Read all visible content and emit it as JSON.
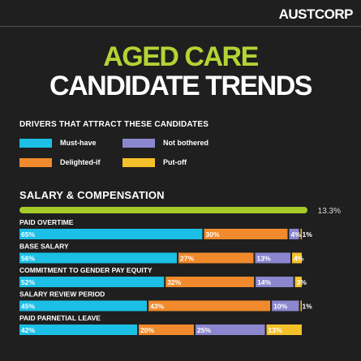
{
  "brand": "AUSTCORP",
  "title": {
    "line1": "AGED CARE",
    "line2": "CANDIDATE TRENDS"
  },
  "drivers_title": "DRIVERS THAT ATTRACT THESE CANDIDATES",
  "legend": [
    {
      "label": "Must-have",
      "color": "#1cbfe5"
    },
    {
      "label": "Not bothered",
      "color": "#8b87cf"
    },
    {
      "label": "Delighted-if",
      "color": "#f08a2c"
    },
    {
      "label": "Put-off",
      "color": "#f5c12b"
    }
  ],
  "colors": {
    "title_accent": "#b5d334",
    "summary_bar": "#a6cc2a",
    "background": "#1f1f1f"
  },
  "chart_data": {
    "type": "bar",
    "stacked": true,
    "orientation": "horizontal",
    "title": "SALARY & COMPENSATION",
    "summary": {
      "value": 13.3,
      "label": "13.3%"
    },
    "series_order": [
      "Must-have",
      "Delighted-if",
      "Not bothered",
      "Put-off"
    ],
    "categories": [
      "PAID OVERTIME",
      "BASE SALARY",
      "COMMITMENT TO GENDER PAY EQUITY",
      "SALARY REVIEW PERIOD",
      "PAID PARNETIAL LEAVE"
    ],
    "series": [
      {
        "name": "Must-have",
        "color": "#1cbfe5",
        "values": [
          65,
          56,
          52,
          45,
          42
        ],
        "labels": [
          "65%",
          "56%",
          "52%",
          "45%",
          "42%"
        ]
      },
      {
        "name": "Delighted-if",
        "color": "#f08a2c",
        "values": [
          30,
          27,
          32,
          43,
          20
        ],
        "labels": [
          "30%",
          "27%",
          "32%",
          "43%",
          "20%"
        ]
      },
      {
        "name": "Not bothered",
        "color": "#8b87cf",
        "values": [
          4,
          13,
          14,
          10,
          25
        ],
        "labels": [
          "4%",
          "13%",
          "14%",
          "10%",
          "25%"
        ]
      },
      {
        "name": "Put-off",
        "color": "#f5c12b",
        "values": [
          1,
          4,
          3,
          1,
          13
        ],
        "labels": [
          "1%",
          "4%",
          "3%",
          "1%",
          "13%"
        ]
      }
    ],
    "xlim": [
      0,
      100
    ]
  }
}
